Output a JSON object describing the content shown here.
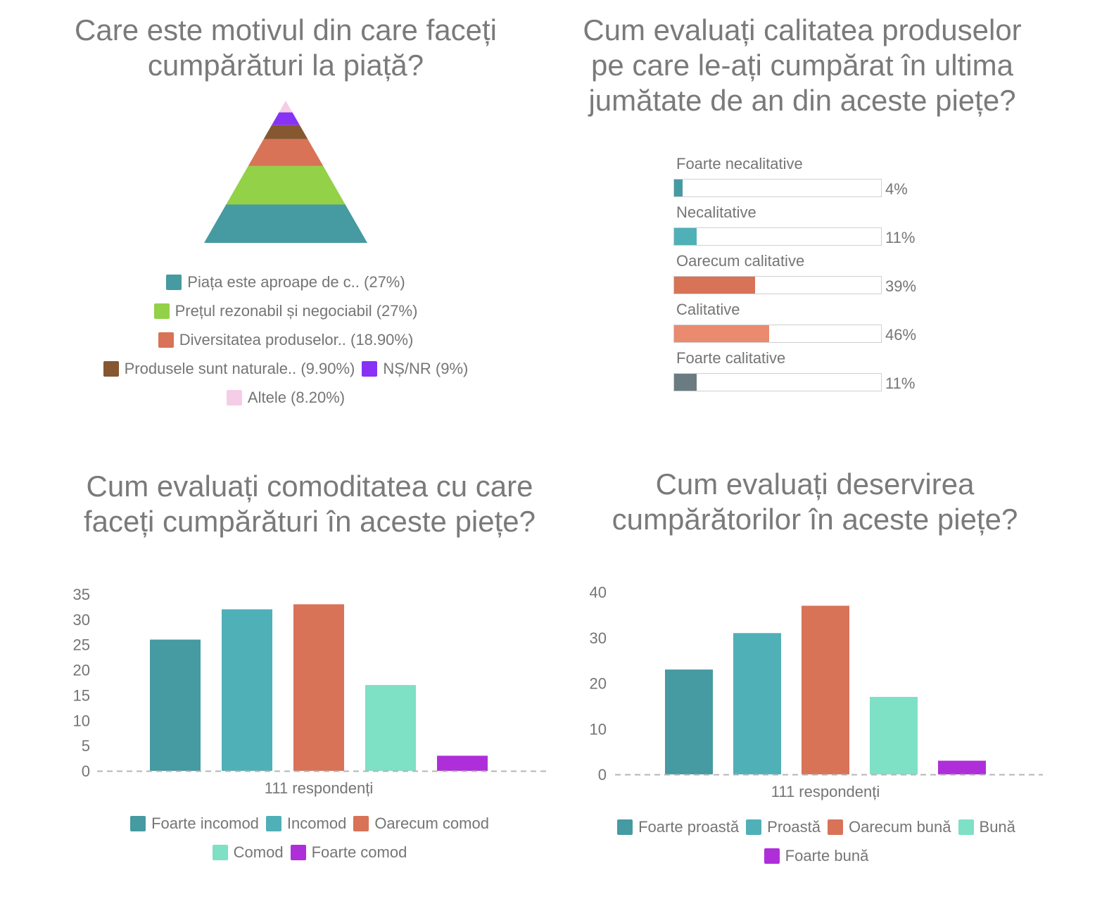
{
  "chart_data": [
    {
      "type": "funnel-pyramid",
      "title": "Care este motivul din care faceți cumpărături la piață?",
      "legend_position": "bottom",
      "items": [
        {
          "label": "Piața este aproape de c.. (27%)",
          "value": 27,
          "color": "#469aa1"
        },
        {
          "label": "Prețul rezonabil și negociabil (27%)",
          "value": 27,
          "color": "#93d148"
        },
        {
          "label": "Diversitatea produselor.. (18.90%)",
          "value": 18.9,
          "color": "#d87357"
        },
        {
          "label": "Produsele sunt naturale.. (9.90%)",
          "value": 9.9,
          "color": "#855831"
        },
        {
          "label": "NȘ/NR (9%)",
          "value": 9,
          "color": "#8732f4"
        },
        {
          "label": "Altele (8.20%)",
          "value": 8.2,
          "color": "#f6cde6"
        }
      ]
    },
    {
      "type": "bar-horizontal-progress",
      "title": "Cum evaluați calitatea produselor pe care le-ați cumpărat în ultima jumătate de an din aceste piețe?",
      "xlim": [
        0,
        100
      ],
      "items": [
        {
          "label": "Foarte necalitative",
          "value": 4,
          "value_label": "4%",
          "color": "#469aa1"
        },
        {
          "label": "Necalitative",
          "value": 11,
          "value_label": "11%",
          "color": "#50b0b8"
        },
        {
          "label": "Oarecum calitative",
          "value": 39,
          "value_label": "39%",
          "color": "#d87357"
        },
        {
          "label": "Calitative",
          "value": 46,
          "value_label": "46%",
          "color": "#ea8a6e"
        },
        {
          "label": "Foarte calitative",
          "value": 11,
          "value_label": "11%",
          "color": "#6a7c82"
        }
      ]
    },
    {
      "type": "bar",
      "title": "Cum evaluați comoditatea cu care faceți cumpărături în aceste piețe?",
      "xlabel": "111 respondenți",
      "ylabel": "",
      "ylim": [
        0,
        35
      ],
      "yticks": [
        0,
        5,
        10,
        15,
        20,
        25,
        30,
        35
      ],
      "grid": false,
      "legend_position": "bottom",
      "categories": [
        "111 respondenți"
      ],
      "series": [
        {
          "name": "Foarte incomod",
          "values": [
            26
          ],
          "color": "#469aa1"
        },
        {
          "name": "Incomod",
          "values": [
            32
          ],
          "color": "#50b0b8"
        },
        {
          "name": "Oarecum comod",
          "values": [
            33
          ],
          "color": "#d87357"
        },
        {
          "name": "Comod",
          "values": [
            17
          ],
          "color": "#7ee0c4"
        },
        {
          "name": "Foarte comod",
          "values": [
            3
          ],
          "color": "#ae2fd9"
        }
      ]
    },
    {
      "type": "bar",
      "title": "Cum evaluați deservirea cumpărătorilor în aceste piețe?",
      "xlabel": "111 respondenți",
      "ylabel": "",
      "ylim": [
        0,
        40
      ],
      "yticks": [
        0,
        10,
        20,
        30,
        40
      ],
      "grid": false,
      "legend_position": "bottom",
      "categories": [
        "111 respondenți"
      ],
      "series": [
        {
          "name": "Foarte proastă",
          "values": [
            23
          ],
          "color": "#469aa1"
        },
        {
          "name": "Proastă",
          "values": [
            31
          ],
          "color": "#50b0b8"
        },
        {
          "name": "Oarecum bună",
          "values": [
            37
          ],
          "color": "#d87357"
        },
        {
          "name": "Bună",
          "values": [
            17
          ],
          "color": "#7ee0c4"
        },
        {
          "name": "Foarte bună",
          "values": [
            3
          ],
          "color": "#ae2fd9"
        }
      ]
    }
  ]
}
